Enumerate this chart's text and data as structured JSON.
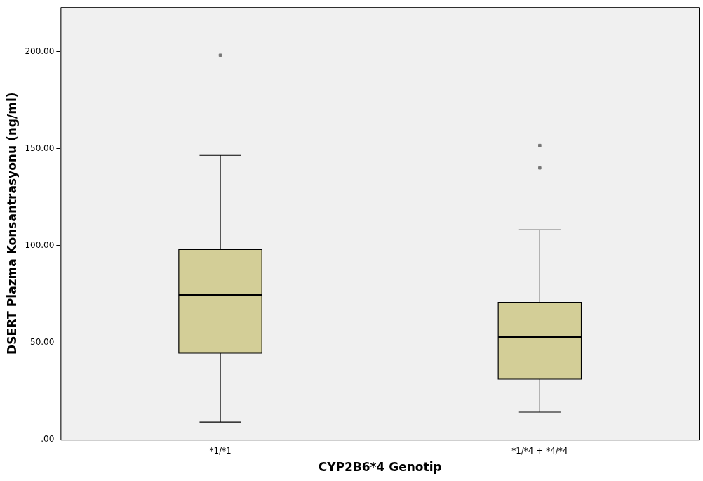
{
  "chart_data": {
    "type": "box",
    "xlabel": "CYP2B6*4 Genotip",
    "ylabel": "DSERT Plazma Konsantrasyonu (ng/ml)",
    "categories": [
      "*1/*1",
      "*1/*4 + *4/*4"
    ],
    "color": "#d3ce97",
    "boxes": [
      {
        "low": 9.1,
        "q1": 44.6,
        "median": 74.8,
        "q3": 98,
        "high": 146.6,
        "outliers": [
          198.2
        ]
      },
      {
        "low": 14.2,
        "q1": 31.2,
        "median": 53,
        "q3": 70.8,
        "high": 108.2,
        "outliers": [
          140.1,
          151.7
        ]
      }
    ],
    "ylim": [
      0,
      223
    ],
    "yticks": [
      {
        "value": 0,
        "label": ".00"
      },
      {
        "value": 50,
        "label": "50.00"
      },
      {
        "value": 100,
        "label": "100.00"
      },
      {
        "value": 150,
        "label": "150.00"
      },
      {
        "value": 200,
        "label": "200.00"
      }
    ],
    "grid": false,
    "legend": false
  }
}
